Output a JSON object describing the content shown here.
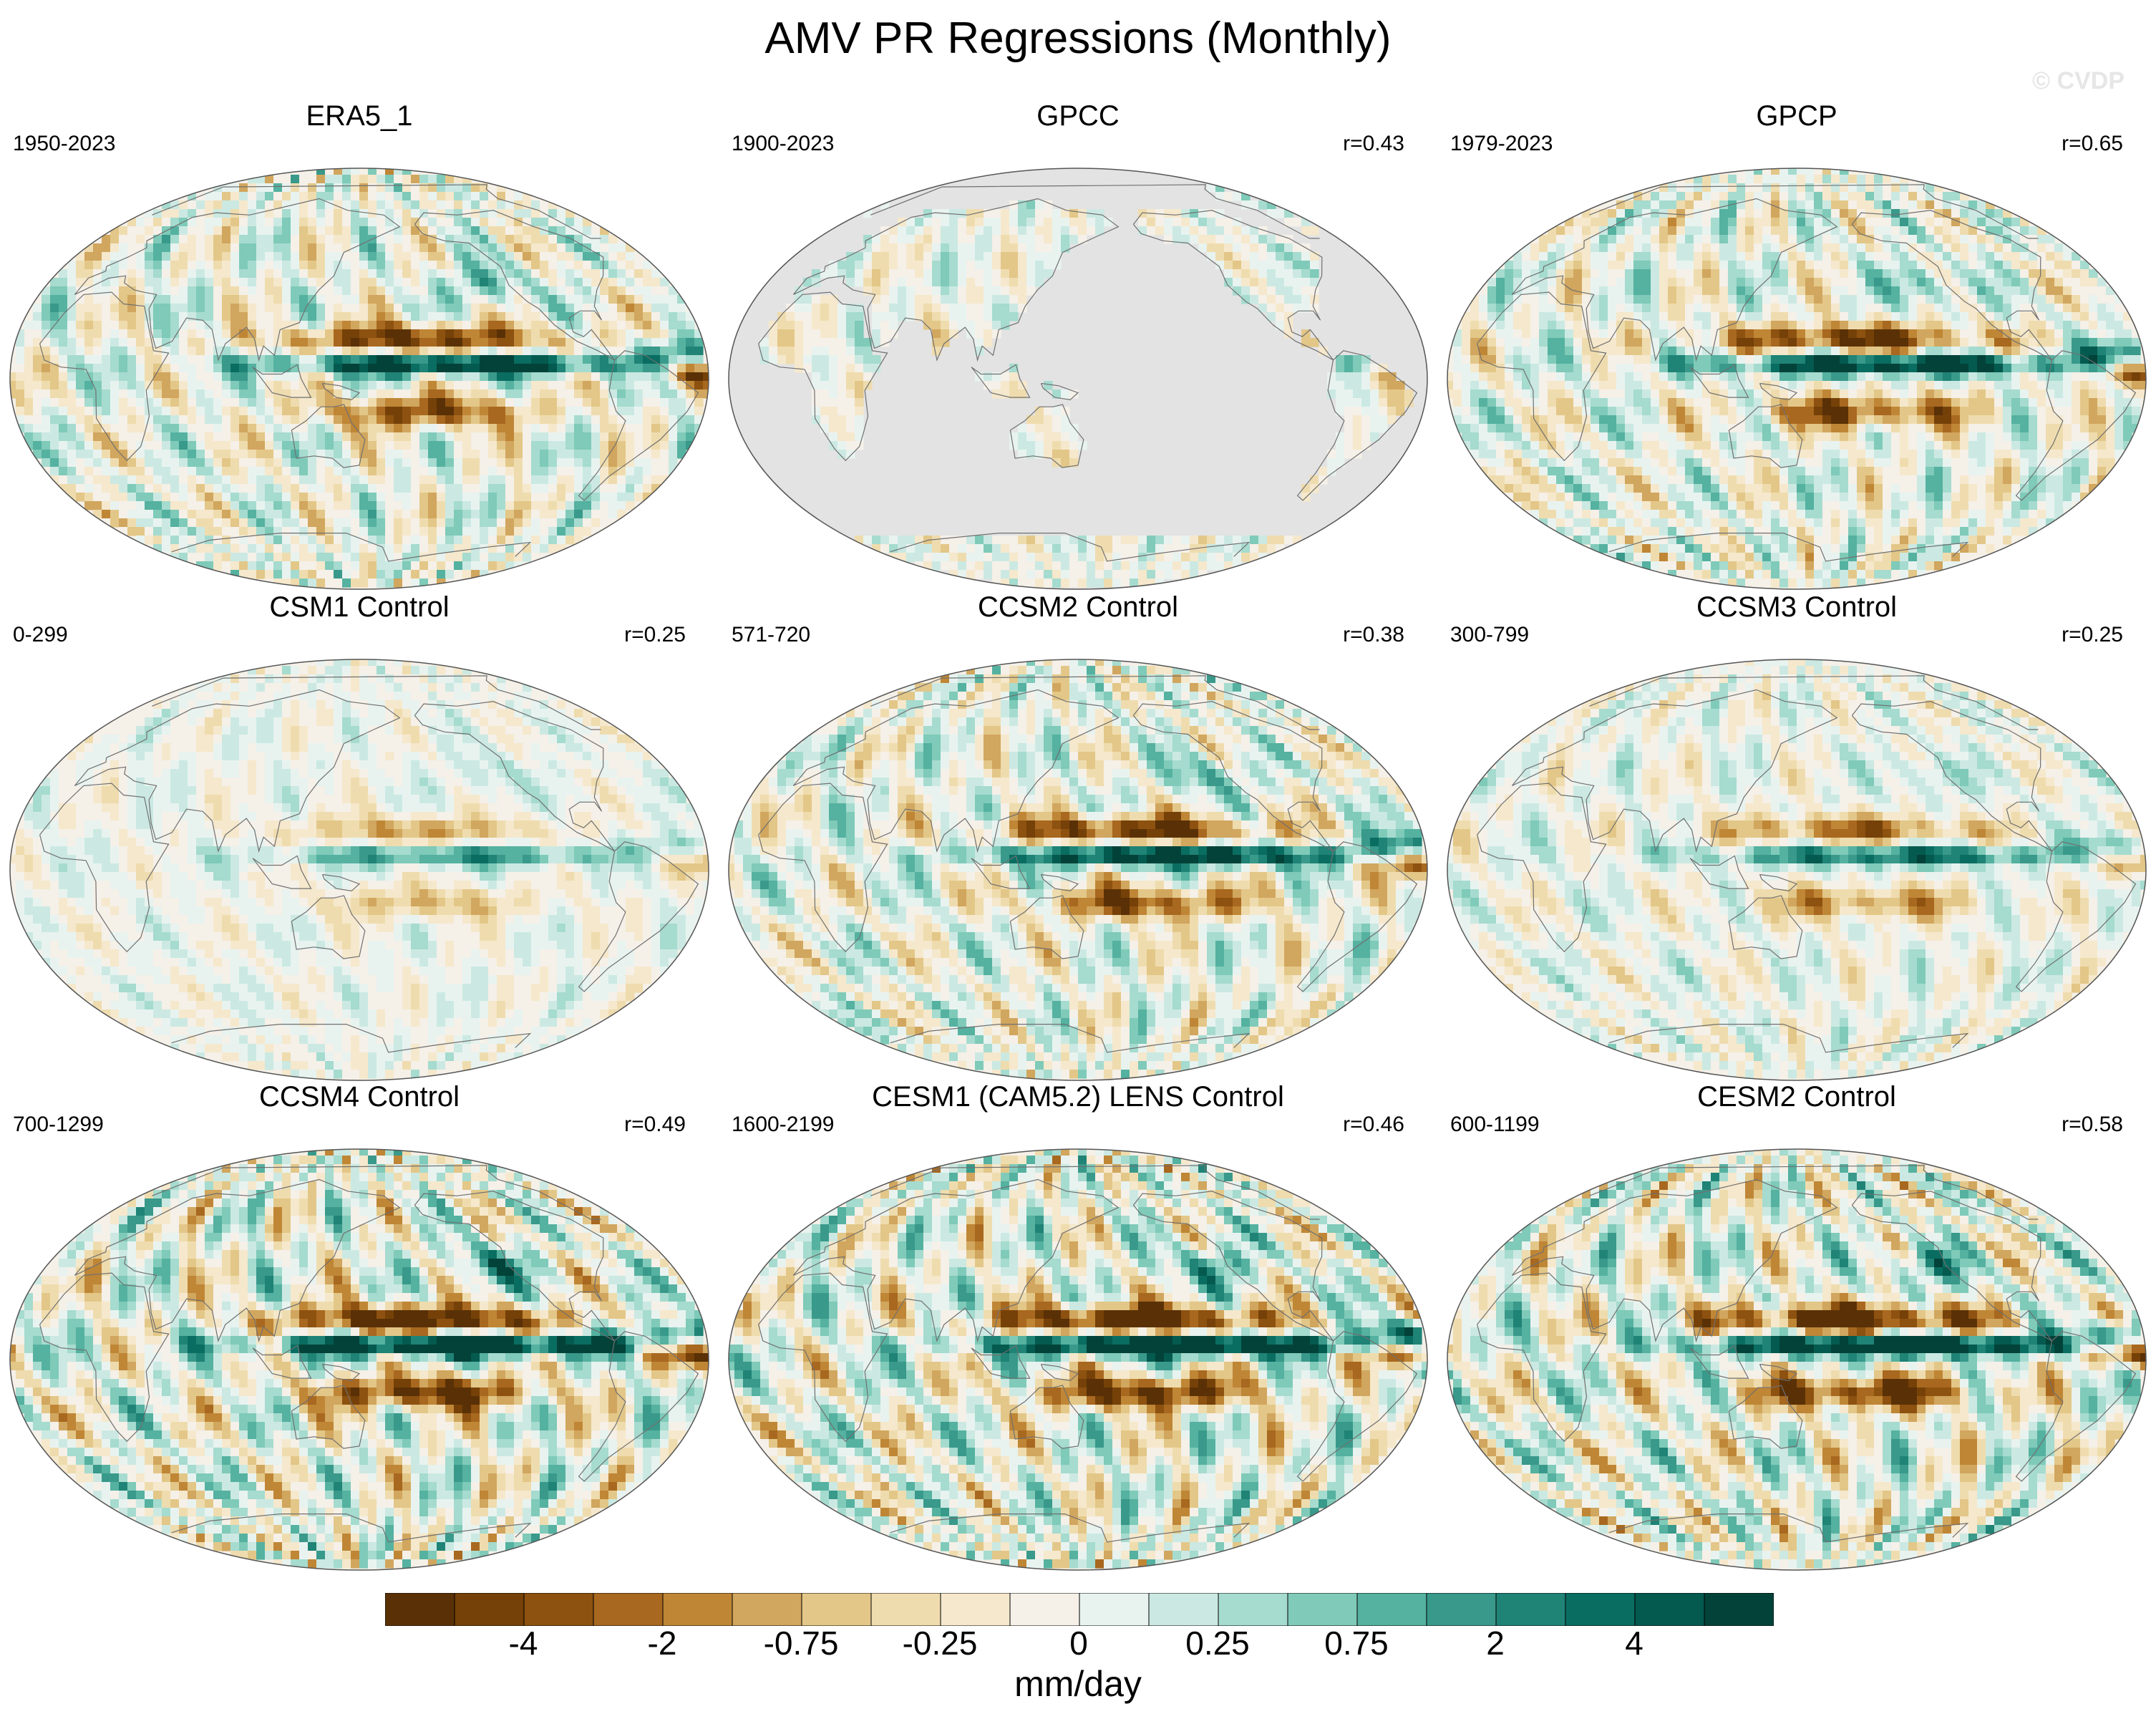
{
  "title": "AMV PR Regressions (Monthly)",
  "watermark": "© CVDP",
  "chart_data": {
    "type": "heatmap",
    "projection": "Robinson (Pacific-centered)",
    "panels": [
      {
        "name": "ERA5_1",
        "years": "1950-2023",
        "r": null,
        "land_only": false,
        "amplitude": 0.8
      },
      {
        "name": "GPCC",
        "years": "1900-2023",
        "r": "r=0.43",
        "land_only": true,
        "amplitude": 0.6
      },
      {
        "name": "GPCP",
        "years": "1979-2023",
        "r": "r=0.65",
        "land_only": false,
        "amplitude": 0.8
      },
      {
        "name": "CSM1 Control",
        "years": "0-299",
        "r": "r=0.25",
        "land_only": false,
        "amplitude": 0.4
      },
      {
        "name": "CCSM2 Control",
        "years": "571-720",
        "r": "r=0.38",
        "land_only": false,
        "amplitude": 0.8
      },
      {
        "name": "CCSM3 Control",
        "years": "300-799",
        "r": "r=0.25",
        "land_only": false,
        "amplitude": 0.55
      },
      {
        "name": "CCSM4 Control",
        "years": "700-1299",
        "r": "r=0.49",
        "land_only": false,
        "amplitude": 1.0
      },
      {
        "name": "CESM1 (CAM5.2) LENS Control",
        "years": "1600-2199",
        "r": "r=0.46",
        "land_only": false,
        "amplitude": 1.0
      },
      {
        "name": "CESM2 Control",
        "years": "600-1199",
        "r": "r=0.58",
        "land_only": false,
        "amplitude": 1.0
      }
    ],
    "colorbar": {
      "labels": [
        "-4",
        "-2",
        "-0.75",
        "-0.25",
        "0",
        "0.25",
        "0.75",
        "2",
        "4"
      ],
      "units": "mm/day",
      "colors": [
        "#5a3106",
        "#754108",
        "#8d5110",
        "#a8681f",
        "#bf8636",
        "#d1a65e",
        "#e3c788",
        "#efdcae",
        "#f5e8cc",
        "#f5f0e8",
        "#e8f3f0",
        "#cbe9e2",
        "#a6dbcf",
        "#7fcab9",
        "#55b1a0",
        "#39998a",
        "#1f8376",
        "#0a6d61",
        "#045a4f",
        "#024239"
      ]
    }
  }
}
